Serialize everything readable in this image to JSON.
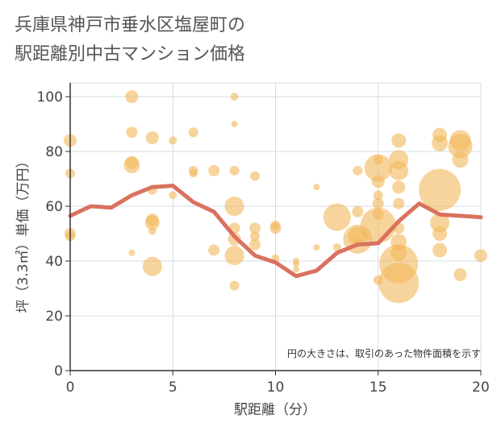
{
  "title": {
    "line1": "兵庫県神戸市垂水区塩屋町の",
    "line2": "駅距離別中古マンション価格"
  },
  "colors": {
    "bubble": "#f2b85a",
    "line": "#d9725e",
    "grid": "#d5dbe3",
    "axis": "#333333"
  },
  "chart_data": {
    "type": "scatter",
    "xlabel": "駅距離（分）",
    "ylabel": "坪（3.3㎡）単価（万円）",
    "xlim": [
      0,
      20
    ],
    "ylim": [
      0,
      105
    ],
    "x_ticks": [
      "0",
      "5",
      "10",
      "15",
      "20"
    ],
    "y_ticks": [
      "0",
      "20",
      "40",
      "60",
      "80",
      "100"
    ],
    "grid": true,
    "size_note": "円の大きさは、取引のあった物件面積を示す",
    "bubbles": [
      {
        "x": 0,
        "y": 84,
        "s": 8
      },
      {
        "x": 0,
        "y": 72,
        "s": 6
      },
      {
        "x": 0,
        "y": 50,
        "s": 7
      },
      {
        "x": 0,
        "y": 49,
        "s": 6
      },
      {
        "x": 3,
        "y": 100,
        "s": 8
      },
      {
        "x": 3,
        "y": 87,
        "s": 7
      },
      {
        "x": 3,
        "y": 76,
        "s": 8
      },
      {
        "x": 3,
        "y": 75,
        "s": 10
      },
      {
        "x": 3,
        "y": 43,
        "s": 4
      },
      {
        "x": 4,
        "y": 85,
        "s": 8
      },
      {
        "x": 4,
        "y": 66,
        "s": 6
      },
      {
        "x": 4,
        "y": 55,
        "s": 8
      },
      {
        "x": 4,
        "y": 54,
        "s": 9
      },
      {
        "x": 4,
        "y": 51,
        "s": 5
      },
      {
        "x": 4,
        "y": 38,
        "s": 12
      },
      {
        "x": 5,
        "y": 84,
        "s": 5
      },
      {
        "x": 5,
        "y": 64,
        "s": 5
      },
      {
        "x": 6,
        "y": 87,
        "s": 6
      },
      {
        "x": 6,
        "y": 73,
        "s": 6
      },
      {
        "x": 6,
        "y": 72,
        "s": 5
      },
      {
        "x": 7,
        "y": 73,
        "s": 7
      },
      {
        "x": 7,
        "y": 44,
        "s": 7
      },
      {
        "x": 8,
        "y": 100,
        "s": 5
      },
      {
        "x": 8,
        "y": 90,
        "s": 4
      },
      {
        "x": 8,
        "y": 73,
        "s": 6
      },
      {
        "x": 8,
        "y": 60,
        "s": 12
      },
      {
        "x": 8,
        "y": 52,
        "s": 7
      },
      {
        "x": 8,
        "y": 48,
        "s": 8
      },
      {
        "x": 8,
        "y": 42,
        "s": 12
      },
      {
        "x": 8,
        "y": 31,
        "s": 6
      },
      {
        "x": 9,
        "y": 71,
        "s": 6
      },
      {
        "x": 9,
        "y": 52,
        "s": 7
      },
      {
        "x": 9,
        "y": 49,
        "s": 6
      },
      {
        "x": 9,
        "y": 46,
        "s": 7
      },
      {
        "x": 10,
        "y": 53,
        "s": 6
      },
      {
        "x": 10,
        "y": 52,
        "s": 7
      },
      {
        "x": 10,
        "y": 41,
        "s": 5
      },
      {
        "x": 11,
        "y": 40,
        "s": 4
      },
      {
        "x": 11,
        "y": 39,
        "s": 4
      },
      {
        "x": 11,
        "y": 37,
        "s": 4
      },
      {
        "x": 12,
        "y": 67,
        "s": 4
      },
      {
        "x": 12,
        "y": 45,
        "s": 4
      },
      {
        "x": 13,
        "y": 56,
        "s": 17
      },
      {
        "x": 13,
        "y": 45,
        "s": 5
      },
      {
        "x": 14,
        "y": 73,
        "s": 6
      },
      {
        "x": 14,
        "y": 58,
        "s": 7
      },
      {
        "x": 14,
        "y": 49,
        "s": 12
      },
      {
        "x": 14,
        "y": 48,
        "s": 18
      },
      {
        "x": 14,
        "y": 47,
        "s": 5
      },
      {
        "x": 15,
        "y": 77,
        "s": 6
      },
      {
        "x": 15,
        "y": 74,
        "s": 17
      },
      {
        "x": 15,
        "y": 69,
        "s": 8
      },
      {
        "x": 15,
        "y": 64,
        "s": 6
      },
      {
        "x": 15,
        "y": 61,
        "s": 7
      },
      {
        "x": 15,
        "y": 57,
        "s": 7
      },
      {
        "x": 15,
        "y": 53,
        "s": 22
      },
      {
        "x": 15,
        "y": 33,
        "s": 6
      },
      {
        "x": 16,
        "y": 84,
        "s": 9
      },
      {
        "x": 16,
        "y": 77,
        "s": 12
      },
      {
        "x": 16,
        "y": 73,
        "s": 12
      },
      {
        "x": 16,
        "y": 67,
        "s": 8
      },
      {
        "x": 16,
        "y": 61,
        "s": 7
      },
      {
        "x": 16,
        "y": 52,
        "s": 7
      },
      {
        "x": 16,
        "y": 47,
        "s": 10
      },
      {
        "x": 16,
        "y": 43,
        "s": 10
      },
      {
        "x": 16,
        "y": 39,
        "s": 24
      },
      {
        "x": 16,
        "y": 32,
        "s": 25
      },
      {
        "x": 18,
        "y": 86,
        "s": 9
      },
      {
        "x": 18,
        "y": 83,
        "s": 10
      },
      {
        "x": 18,
        "y": 66,
        "s": 26
      },
      {
        "x": 18,
        "y": 54,
        "s": 12
      },
      {
        "x": 18,
        "y": 50,
        "s": 9
      },
      {
        "x": 18,
        "y": 44,
        "s": 9
      },
      {
        "x": 19,
        "y": 84,
        "s": 13
      },
      {
        "x": 19,
        "y": 82,
        "s": 15
      },
      {
        "x": 19,
        "y": 77,
        "s": 10
      },
      {
        "x": 19,
        "y": 35,
        "s": 8
      },
      {
        "x": 20,
        "y": 42,
        "s": 8
      }
    ],
    "line": {
      "x": [
        0,
        1,
        2,
        3,
        4,
        5,
        6,
        7,
        8,
        9,
        10,
        11,
        12,
        13,
        14,
        15,
        16,
        17,
        18,
        19,
        20
      ],
      "y": [
        56.5,
        60,
        59.5,
        64,
        67,
        67.5,
        61.5,
        58,
        49,
        42,
        39.5,
        34.5,
        36.5,
        43,
        46,
        46.5,
        54.5,
        61,
        57,
        56.5,
        56
      ]
    }
  }
}
